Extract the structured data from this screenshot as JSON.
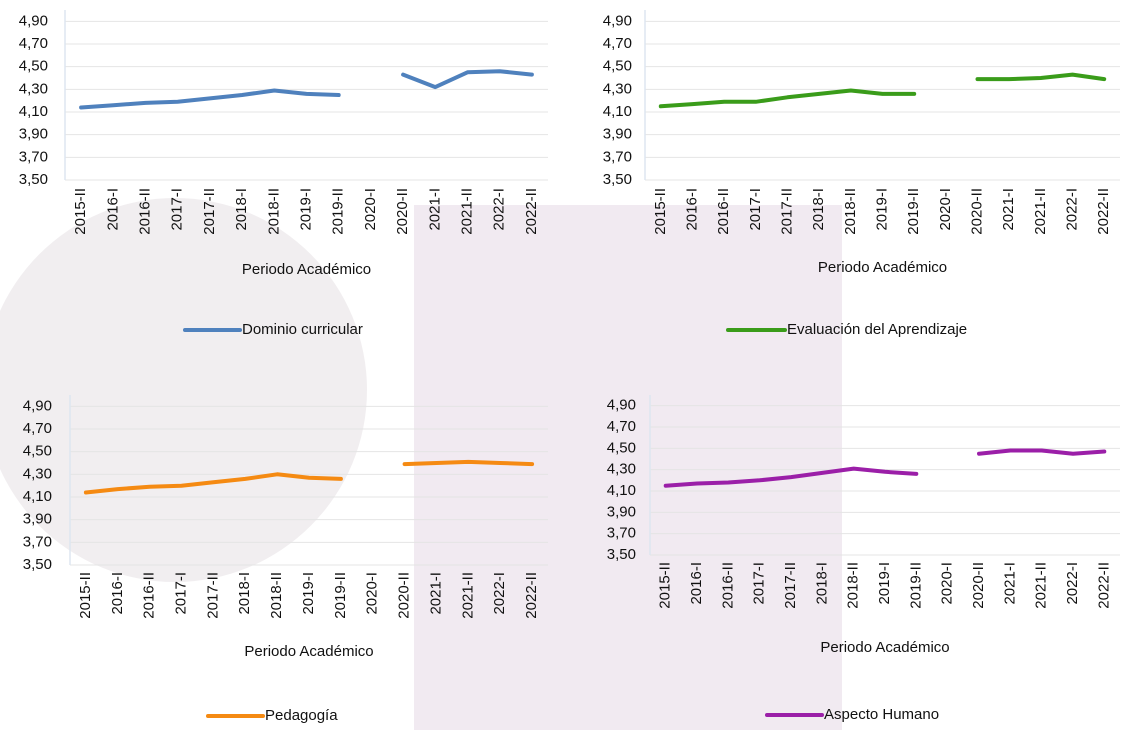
{
  "chart_data": [
    {
      "type": "line",
      "x_label": "Periodo Académico",
      "categories": [
        "2015-II",
        "2016-I",
        "2016-II",
        "2017-I",
        "2017-II",
        "2018-I",
        "2018-II",
        "2019-I",
        "2019-II",
        "2020-I",
        "2020-II",
        "2021-I",
        "2021-II",
        "2022-I",
        "2022-II"
      ],
      "series": [
        {
          "name": "Dominio curricular",
          "color": "#4f81bd",
          "values": [
            4.14,
            4.16,
            4.18,
            4.19,
            4.22,
            4.25,
            4.29,
            4.26,
            4.25,
            null,
            4.43,
            4.32,
            4.45,
            4.46,
            4.43
          ]
        }
      ],
      "ylim": [
        3.5,
        5.0
      ],
      "yticks": [
        {
          "value": 3.5,
          "label": "3,50"
        },
        {
          "value": 3.7,
          "label": "3,70"
        },
        {
          "value": 3.9,
          "label": "3,90"
        },
        {
          "value": 4.1,
          "label": "4,10"
        },
        {
          "value": 4.3,
          "label": "4,30"
        },
        {
          "value": 4.5,
          "label": "4,50"
        },
        {
          "value": 4.7,
          "label": "4,70"
        },
        {
          "value": 4.9,
          "label": "4,90"
        }
      ],
      "grid": true
    },
    {
      "type": "line",
      "x_label": "Periodo Académico",
      "categories": [
        "2015-II",
        "2016-I",
        "2016-II",
        "2017-I",
        "2017-II",
        "2018-I",
        "2018-II",
        "2019-I",
        "2019-II",
        "2020-I",
        "2020-II",
        "2021-I",
        "2021-II",
        "2022-I",
        "2022-II"
      ],
      "series": [
        {
          "name": "Evaluación del Aprendizaje",
          "color": "#3a9c1a",
          "values": [
            4.15,
            4.17,
            4.19,
            4.19,
            4.23,
            4.26,
            4.29,
            4.26,
            4.26,
            null,
            4.39,
            4.39,
            4.4,
            4.43,
            4.39
          ]
        }
      ],
      "ylim": [
        3.5,
        5.0
      ],
      "yticks": [
        {
          "value": 3.5,
          "label": "3,50"
        },
        {
          "value": 3.7,
          "label": "3,70"
        },
        {
          "value": 3.9,
          "label": "3,90"
        },
        {
          "value": 4.1,
          "label": "4,10"
        },
        {
          "value": 4.3,
          "label": "4,30"
        },
        {
          "value": 4.5,
          "label": "4,50"
        },
        {
          "value": 4.7,
          "label": "4,70"
        },
        {
          "value": 4.9,
          "label": "4,90"
        }
      ],
      "grid": true
    },
    {
      "type": "line",
      "x_label": "Periodo Académico",
      "categories": [
        "2015-II",
        "2016-I",
        "2016-II",
        "2017-I",
        "2017-II",
        "2018-I",
        "2018-II",
        "2019-I",
        "2019-II",
        "2020-I",
        "2020-II",
        "2021-I",
        "2021-II",
        "2022-I",
        "2022-II"
      ],
      "series": [
        {
          "name": "Pedagogía",
          "color": "#f58a12",
          "values": [
            4.14,
            4.17,
            4.19,
            4.2,
            4.23,
            4.26,
            4.3,
            4.27,
            4.26,
            null,
            4.39,
            4.4,
            4.41,
            4.4,
            4.39
          ]
        }
      ],
      "ylim": [
        3.5,
        5.0
      ],
      "yticks": [
        {
          "value": 3.5,
          "label": "3,50"
        },
        {
          "value": 3.7,
          "label": "3,70"
        },
        {
          "value": 3.9,
          "label": "3,90"
        },
        {
          "value": 4.1,
          "label": "4,10"
        },
        {
          "value": 4.3,
          "label": "4,30"
        },
        {
          "value": 4.5,
          "label": "4,50"
        },
        {
          "value": 4.7,
          "label": "4,70"
        },
        {
          "value": 4.9,
          "label": "4,90"
        }
      ],
      "grid": true
    },
    {
      "type": "line",
      "x_label": "Periodo Académico",
      "categories": [
        "2015-II",
        "2016-I",
        "2016-II",
        "2017-I",
        "2017-II",
        "2018-I",
        "2018-II",
        "2019-I",
        "2019-II",
        "2020-I",
        "2020-II",
        "2021-I",
        "2021-II",
        "2022-I",
        "2022-II"
      ],
      "series": [
        {
          "name": "Aspecto Humano",
          "color": "#9b1fa8",
          "values": [
            4.15,
            4.17,
            4.18,
            4.2,
            4.23,
            4.27,
            4.31,
            4.28,
            4.26,
            null,
            4.45,
            4.48,
            4.48,
            4.45,
            4.47
          ]
        }
      ],
      "ylim": [
        3.5,
        5.0
      ],
      "yticks": [
        {
          "value": 3.5,
          "label": "3,50"
        },
        {
          "value": 3.7,
          "label": "3,70"
        },
        {
          "value": 3.9,
          "label": "3,90"
        },
        {
          "value": 4.1,
          "label": "4,10"
        },
        {
          "value": 4.3,
          "label": "4,30"
        },
        {
          "value": 4.5,
          "label": "4,50"
        },
        {
          "value": 4.7,
          "label": "4,70"
        },
        {
          "value": 4.9,
          "label": "4,90"
        }
      ],
      "grid": true
    }
  ]
}
